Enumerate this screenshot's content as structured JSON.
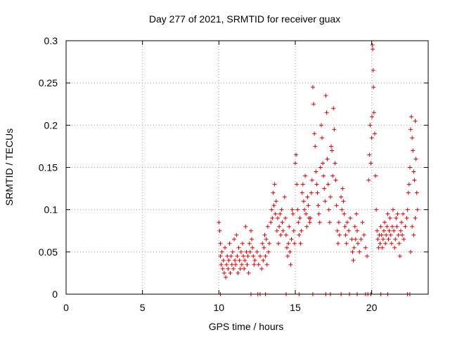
{
  "chart_data": {
    "type": "scatter",
    "title": "Day 277 of 2021, SRMTID for receiver guax",
    "xlabel": "GPS time / hours",
    "ylabel": "SRMTID / TECUs",
    "xlim": [
      0,
      23.7
    ],
    "ylim": [
      0,
      0.3
    ],
    "xticks": [
      0,
      5,
      10,
      15,
      20
    ],
    "yticks": [
      0,
      0.05,
      0.1,
      0.15,
      0.2,
      0.25,
      0.3
    ],
    "grid": true,
    "marker": "+",
    "color": "#e00000",
    "series": [
      {
        "name": "SRMTID",
        "points": [
          [
            10.0,
            0.085
          ],
          [
            10.05,
            0.075
          ],
          [
            10.1,
            0.06
          ],
          [
            10.1,
            0.045
          ],
          [
            10.15,
            0.035
          ],
          [
            10.2,
            0.05
          ],
          [
            10.25,
            0.03
          ],
          [
            10.3,
            0.04
          ],
          [
            10.35,
            0.025
          ],
          [
            10.4,
            0.055
          ],
          [
            10.45,
            0.02
          ],
          [
            10.5,
            0.035
          ],
          [
            10.55,
            0.045
          ],
          [
            10.6,
            0.03
          ],
          [
            10.65,
            0.04
          ],
          [
            10.7,
            0.06
          ],
          [
            10.75,
            0.025
          ],
          [
            10.8,
            0.045
          ],
          [
            10.85,
            0.035
          ],
          [
            10.9,
            0.05
          ],
          [
            10.95,
            0.03
          ],
          [
            11.0,
            0.065
          ],
          [
            11.05,
            0.04
          ],
          [
            11.1,
            0.035
          ],
          [
            11.15,
            0.07
          ],
          [
            11.2,
            0.045
          ],
          [
            11.25,
            0.025
          ],
          [
            11.3,
            0.055
          ],
          [
            11.35,
            0.04
          ],
          [
            11.4,
            0.03
          ],
          [
            11.45,
            0.05
          ],
          [
            11.5,
            0.035
          ],
          [
            11.55,
            0.06
          ],
          [
            11.6,
            0.045
          ],
          [
            11.65,
            0.03
          ],
          [
            11.7,
            0.04
          ],
          [
            11.75,
            0.08
          ],
          [
            11.8,
            0.05
          ],
          [
            11.85,
            0.035
          ],
          [
            11.9,
            0.045
          ],
          [
            11.95,
            0.025
          ],
          [
            12.0,
            0.06
          ],
          [
            12.05,
            0.05
          ],
          [
            12.1,
            0.075
          ],
          [
            12.15,
            0.065
          ],
          [
            12.2,
            0.055
          ],
          [
            12.25,
            0.045
          ],
          [
            12.3,
            0.035
          ],
          [
            12.35,
            0.04
          ],
          [
            12.5,
            0.05
          ],
          [
            12.6,
            0.035
          ],
          [
            12.7,
            0.045
          ],
          [
            12.8,
            0.03
          ],
          [
            12.85,
            0.06
          ],
          [
            12.9,
            0.04
          ],
          [
            12.95,
            0.055
          ],
          [
            13.0,
            0.07
          ],
          [
            13.05,
            0.045
          ],
          [
            13.1,
            0.065
          ],
          [
            13.15,
            0.035
          ],
          [
            13.2,
            0.08
          ],
          [
            13.25,
            0.05
          ],
          [
            13.3,
            0.06
          ],
          [
            13.4,
            0.085
          ],
          [
            13.45,
            0.1
          ],
          [
            13.5,
            0.09
          ],
          [
            13.55,
            0.12
          ],
          [
            13.6,
            0.105
          ],
          [
            13.65,
            0.13
          ],
          [
            13.7,
            0.095
          ],
          [
            13.75,
            0.11
          ],
          [
            13.8,
            0.075
          ],
          [
            13.85,
            0.09
          ],
          [
            13.9,
            0.06
          ],
          [
            13.95,
            0.08
          ],
          [
            14.0,
            0.095
          ],
          [
            14.05,
            0.07
          ],
          [
            14.1,
            0.1
          ],
          [
            14.15,
            0.085
          ],
          [
            14.2,
            0.075
          ],
          [
            14.3,
            0.115
          ],
          [
            14.35,
            0.09
          ],
          [
            14.4,
            0.07
          ],
          [
            14.45,
            0.055
          ],
          [
            14.5,
            0.045
          ],
          [
            14.55,
            0.06
          ],
          [
            14.6,
            0.08
          ],
          [
            14.65,
            0.05
          ],
          [
            14.7,
            0.035
          ],
          [
            14.75,
            0.065
          ],
          [
            14.8,
            0.1
          ],
          [
            14.85,
            0.095
          ],
          [
            14.9,
            0.075
          ],
          [
            14.95,
            0.06
          ],
          [
            15.0,
            0.155
          ],
          [
            15.05,
            0.165
          ],
          [
            15.1,
            0.13
          ],
          [
            15.15,
            0.1
          ],
          [
            15.2,
            0.085
          ],
          [
            15.25,
            0.07
          ],
          [
            15.3,
            0.09
          ],
          [
            15.35,
            0.06
          ],
          [
            15.4,
            0.075
          ],
          [
            15.45,
            0.12
          ],
          [
            15.5,
            0.13
          ],
          [
            15.55,
            0.11
          ],
          [
            15.6,
            0.1
          ],
          [
            15.65,
            0.14
          ],
          [
            15.7,
            0.095
          ],
          [
            15.75,
            0.08
          ],
          [
            15.8,
            0.115
          ],
          [
            15.85,
            0.105
          ],
          [
            15.9,
            0.09
          ],
          [
            15.95,
            0.085
          ],
          [
            16.0,
            0.09
          ],
          [
            16.05,
            0.12
          ],
          [
            16.1,
            0.135
          ],
          [
            16.15,
            0.245
          ],
          [
            16.2,
            0.225
          ],
          [
            16.25,
            0.19
          ],
          [
            16.3,
            0.175
          ],
          [
            16.35,
            0.145
          ],
          [
            16.4,
            0.13
          ],
          [
            16.45,
            0.12
          ],
          [
            16.5,
            0.105
          ],
          [
            16.55,
            0.095
          ],
          [
            16.6,
            0.085
          ],
          [
            16.65,
            0.15
          ],
          [
            16.7,
            0.2
          ],
          [
            16.75,
            0.185
          ],
          [
            16.8,
            0.155
          ],
          [
            16.85,
            0.14
          ],
          [
            16.9,
            0.125
          ],
          [
            16.95,
            0.11
          ],
          [
            17.0,
            0.235
          ],
          [
            17.05,
            0.215
          ],
          [
            17.1,
            0.16
          ],
          [
            17.15,
            0.13
          ],
          [
            17.2,
            0.1
          ],
          [
            17.25,
            0.085
          ],
          [
            17.3,
            0.115
          ],
          [
            17.35,
            0.175
          ],
          [
            17.4,
            0.17
          ],
          [
            17.45,
            0.14
          ],
          [
            17.5,
            0.22
          ],
          [
            17.55,
            0.195
          ],
          [
            17.6,
            0.155
          ],
          [
            17.65,
            0.135
          ],
          [
            17.7,
            0.105
          ],
          [
            17.75,
            0.075
          ],
          [
            17.8,
            0.06
          ],
          [
            17.85,
            0.085
          ],
          [
            17.9,
            0.07
          ],
          [
            18.0,
            0.115
          ],
          [
            18.05,
            0.1
          ],
          [
            18.1,
            0.125
          ],
          [
            18.15,
            0.11
          ],
          [
            18.2,
            0.095
          ],
          [
            18.25,
            0.08
          ],
          [
            18.3,
            0.07
          ],
          [
            18.35,
            0.06
          ],
          [
            18.4,
            0.085
          ],
          [
            18.5,
            0.075
          ],
          [
            18.6,
            0.09
          ],
          [
            18.7,
            0.065
          ],
          [
            18.75,
            0.05
          ],
          [
            18.8,
            0.04
          ],
          [
            18.85,
            0.055
          ],
          [
            18.9,
            0.08
          ],
          [
            18.95,
            0.065
          ],
          [
            19.0,
            0.095
          ],
          [
            19.05,
            0.075
          ],
          [
            19.1,
            0.06
          ],
          [
            19.2,
            0.05
          ],
          [
            19.3,
            0.065
          ],
          [
            19.4,
            0.085
          ],
          [
            19.5,
            0.07
          ],
          [
            19.6,
            0.055
          ],
          [
            19.7,
            0.045
          ],
          [
            19.8,
            0.135
          ],
          [
            19.85,
            0.165
          ],
          [
            19.9,
            0.2
          ],
          [
            19.95,
            0.155
          ],
          [
            20.0,
            0.185
          ],
          [
            20.02,
            0.21
          ],
          [
            20.05,
            0.295
          ],
          [
            20.07,
            0.29
          ],
          [
            20.1,
            0.265
          ],
          [
            20.12,
            0.245
          ],
          [
            20.15,
            0.215
          ],
          [
            20.2,
            0.19
          ],
          [
            20.25,
            0.14
          ],
          [
            20.3,
            0.1
          ],
          [
            20.35,
            0.075
          ],
          [
            20.4,
            0.065
          ],
          [
            20.45,
            0.055
          ],
          [
            20.5,
            0.07
          ],
          [
            20.55,
            0.06
          ],
          [
            20.6,
            0.08
          ],
          [
            20.65,
            0.07
          ],
          [
            20.7,
            0.055
          ],
          [
            20.75,
            0.065
          ],
          [
            20.8,
            0.075
          ],
          [
            20.85,
            0.085
          ],
          [
            20.9,
            0.06
          ],
          [
            20.95,
            0.07
          ],
          [
            21.0,
            0.08
          ],
          [
            21.05,
            0.095
          ],
          [
            21.1,
            0.065
          ],
          [
            21.15,
            0.075
          ],
          [
            21.2,
            0.09
          ],
          [
            21.25,
            0.07
          ],
          [
            21.3,
            0.06
          ],
          [
            21.35,
            0.08
          ],
          [
            21.4,
            0.1
          ],
          [
            21.45,
            0.075
          ],
          [
            21.5,
            0.055
          ],
          [
            21.55,
            0.065
          ],
          [
            21.6,
            0.09
          ],
          [
            21.65,
            0.08
          ],
          [
            21.7,
            0.095
          ],
          [
            21.75,
            0.07
          ],
          [
            21.8,
            0.06
          ],
          [
            21.85,
            0.045
          ],
          [
            21.9,
            0.075
          ],
          [
            21.95,
            0.085
          ],
          [
            22.0,
            0.07
          ],
          [
            22.05,
            0.095
          ],
          [
            22.1,
            0.065
          ],
          [
            22.2,
            0.08
          ],
          [
            22.3,
            0.09
          ],
          [
            22.35,
            0.1
          ],
          [
            22.4,
            0.12
          ],
          [
            22.45,
            0.13
          ],
          [
            22.5,
            0.15
          ],
          [
            22.55,
            0.195
          ],
          [
            22.6,
            0.21
          ],
          [
            22.65,
            0.185
          ],
          [
            22.7,
            0.17
          ],
          [
            22.75,
            0.145
          ],
          [
            22.8,
            0.135
          ],
          [
            22.85,
            0.205
          ],
          [
            22.9,
            0.16
          ],
          [
            22.95,
            0.12
          ],
          [
            23.0,
            0.1
          ],
          [
            22.85,
            0.09
          ],
          [
            22.75,
            0.07
          ],
          [
            22.65,
            0.08
          ],
          [
            22.55,
            0.05
          ],
          [
            10.1,
            0.0
          ],
          [
            12.1,
            0.0
          ],
          [
            12.55,
            0.0
          ],
          [
            12.7,
            0.0
          ],
          [
            13.05,
            0.0
          ],
          [
            14.4,
            0.0
          ],
          [
            15.25,
            0.0
          ],
          [
            16.15,
            0.0
          ],
          [
            17.0,
            0.0
          ],
          [
            17.3,
            0.0
          ],
          [
            18.0,
            0.0
          ],
          [
            18.55,
            0.0
          ],
          [
            19.05,
            0.0
          ],
          [
            19.6,
            0.0
          ],
          [
            19.75,
            0.0
          ],
          [
            19.95,
            0.0
          ],
          [
            20.6,
            0.0
          ],
          [
            21.05,
            0.0
          ],
          [
            22.35,
            0.0
          ],
          [
            22.5,
            0.0
          ]
        ]
      }
    ]
  }
}
